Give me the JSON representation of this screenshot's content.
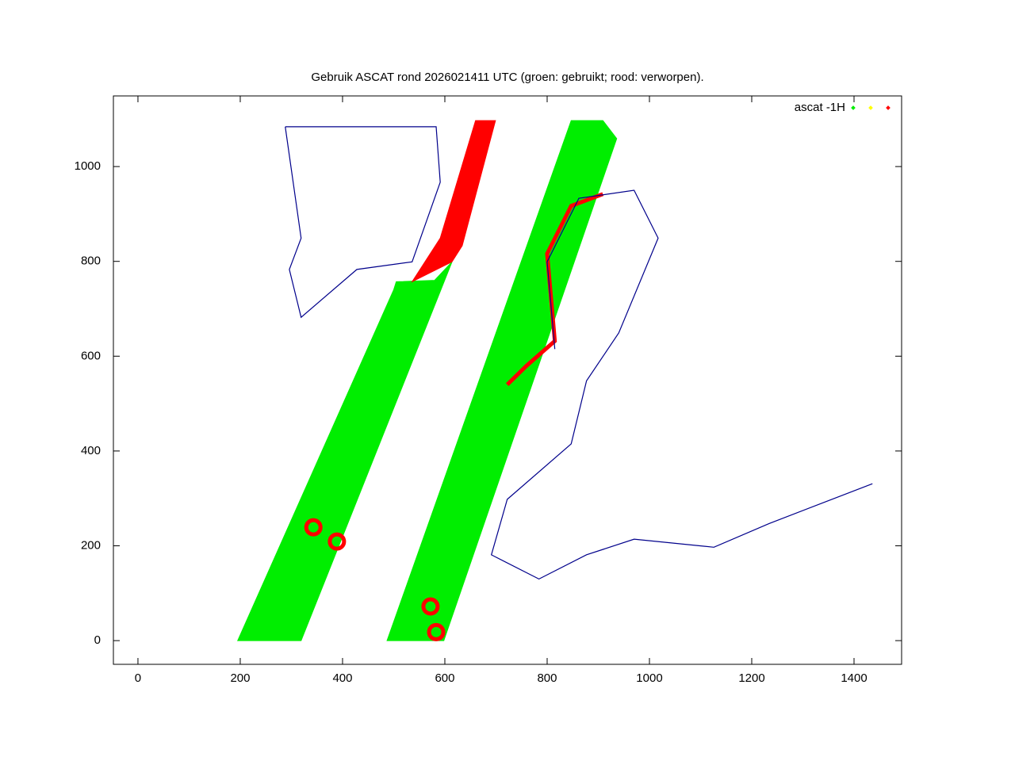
{
  "chart_data": {
    "type": "scatter",
    "title": "Gebruik ASCAT rond 2026021411 UTC (groen: gebruikt; rood: verworpen).",
    "xlim": [
      -48,
      1493
    ],
    "ylim": [
      -50,
      1149
    ],
    "xticks": [
      0,
      200,
      400,
      600,
      800,
      1000,
      1200,
      1400
    ],
    "yticks": [
      0,
      200,
      400,
      600,
      800,
      1000
    ],
    "grid": false,
    "legend": {
      "position": "top-right",
      "entries": [
        {
          "name": "ascat -1H",
          "color": "#00ee00"
        },
        {
          "color": "#ffff00"
        },
        {
          "color": "#ff0000"
        }
      ]
    },
    "series": [
      {
        "mode": "area",
        "color": "#00ee00",
        "x": [
          195,
          319,
          614,
          580,
          505,
          500
        ],
        "y": [
          0,
          0,
          799,
          760,
          757,
          740
        ]
      },
      {
        "mode": "area",
        "color": "#00ee00",
        "x": [
          487,
          598,
          936,
          909,
          847
        ],
        "y": [
          0,
          0,
          1059,
          1097,
          1097
        ]
      },
      {
        "mode": "area",
        "color": "#ff0000",
        "x": [
          536,
          591,
          660,
          699,
          634,
          614
        ],
        "y": [
          757,
          849,
          1097,
          1097,
          833,
          799
        ]
      },
      {
        "mode": "line",
        "color": "#ff0000",
        "x": [
          722,
          760,
          815,
          800,
          847,
          909
        ],
        "y": [
          540,
          580,
          632,
          816,
          917,
          942
        ]
      },
      {
        "mode": "points",
        "color": "#ff0000",
        "x": [
          343,
          389,
          572,
          583
        ],
        "y": [
          239,
          209,
          72,
          18
        ]
      },
      {
        "mode": "line",
        "color": "#00008b",
        "x": [
          288,
          583,
          591,
          536,
          428,
          319,
          296,
          319,
          288
        ],
        "y": [
          1084,
          1084,
          967,
          799,
          783,
          682,
          783,
          849,
          1084
        ]
      },
      {
        "mode": "line",
        "color": "#00008b",
        "x": [
          815,
          800,
          862,
          970,
          1017,
          940,
          877,
          847,
          722,
          691,
          784,
          877,
          970,
          1126,
          1234,
          1436
        ],
        "y": [
          615,
          799,
          933,
          950,
          849,
          649,
          548,
          415,
          298,
          181,
          130,
          181,
          214,
          197,
          247,
          331
        ]
      }
    ]
  }
}
